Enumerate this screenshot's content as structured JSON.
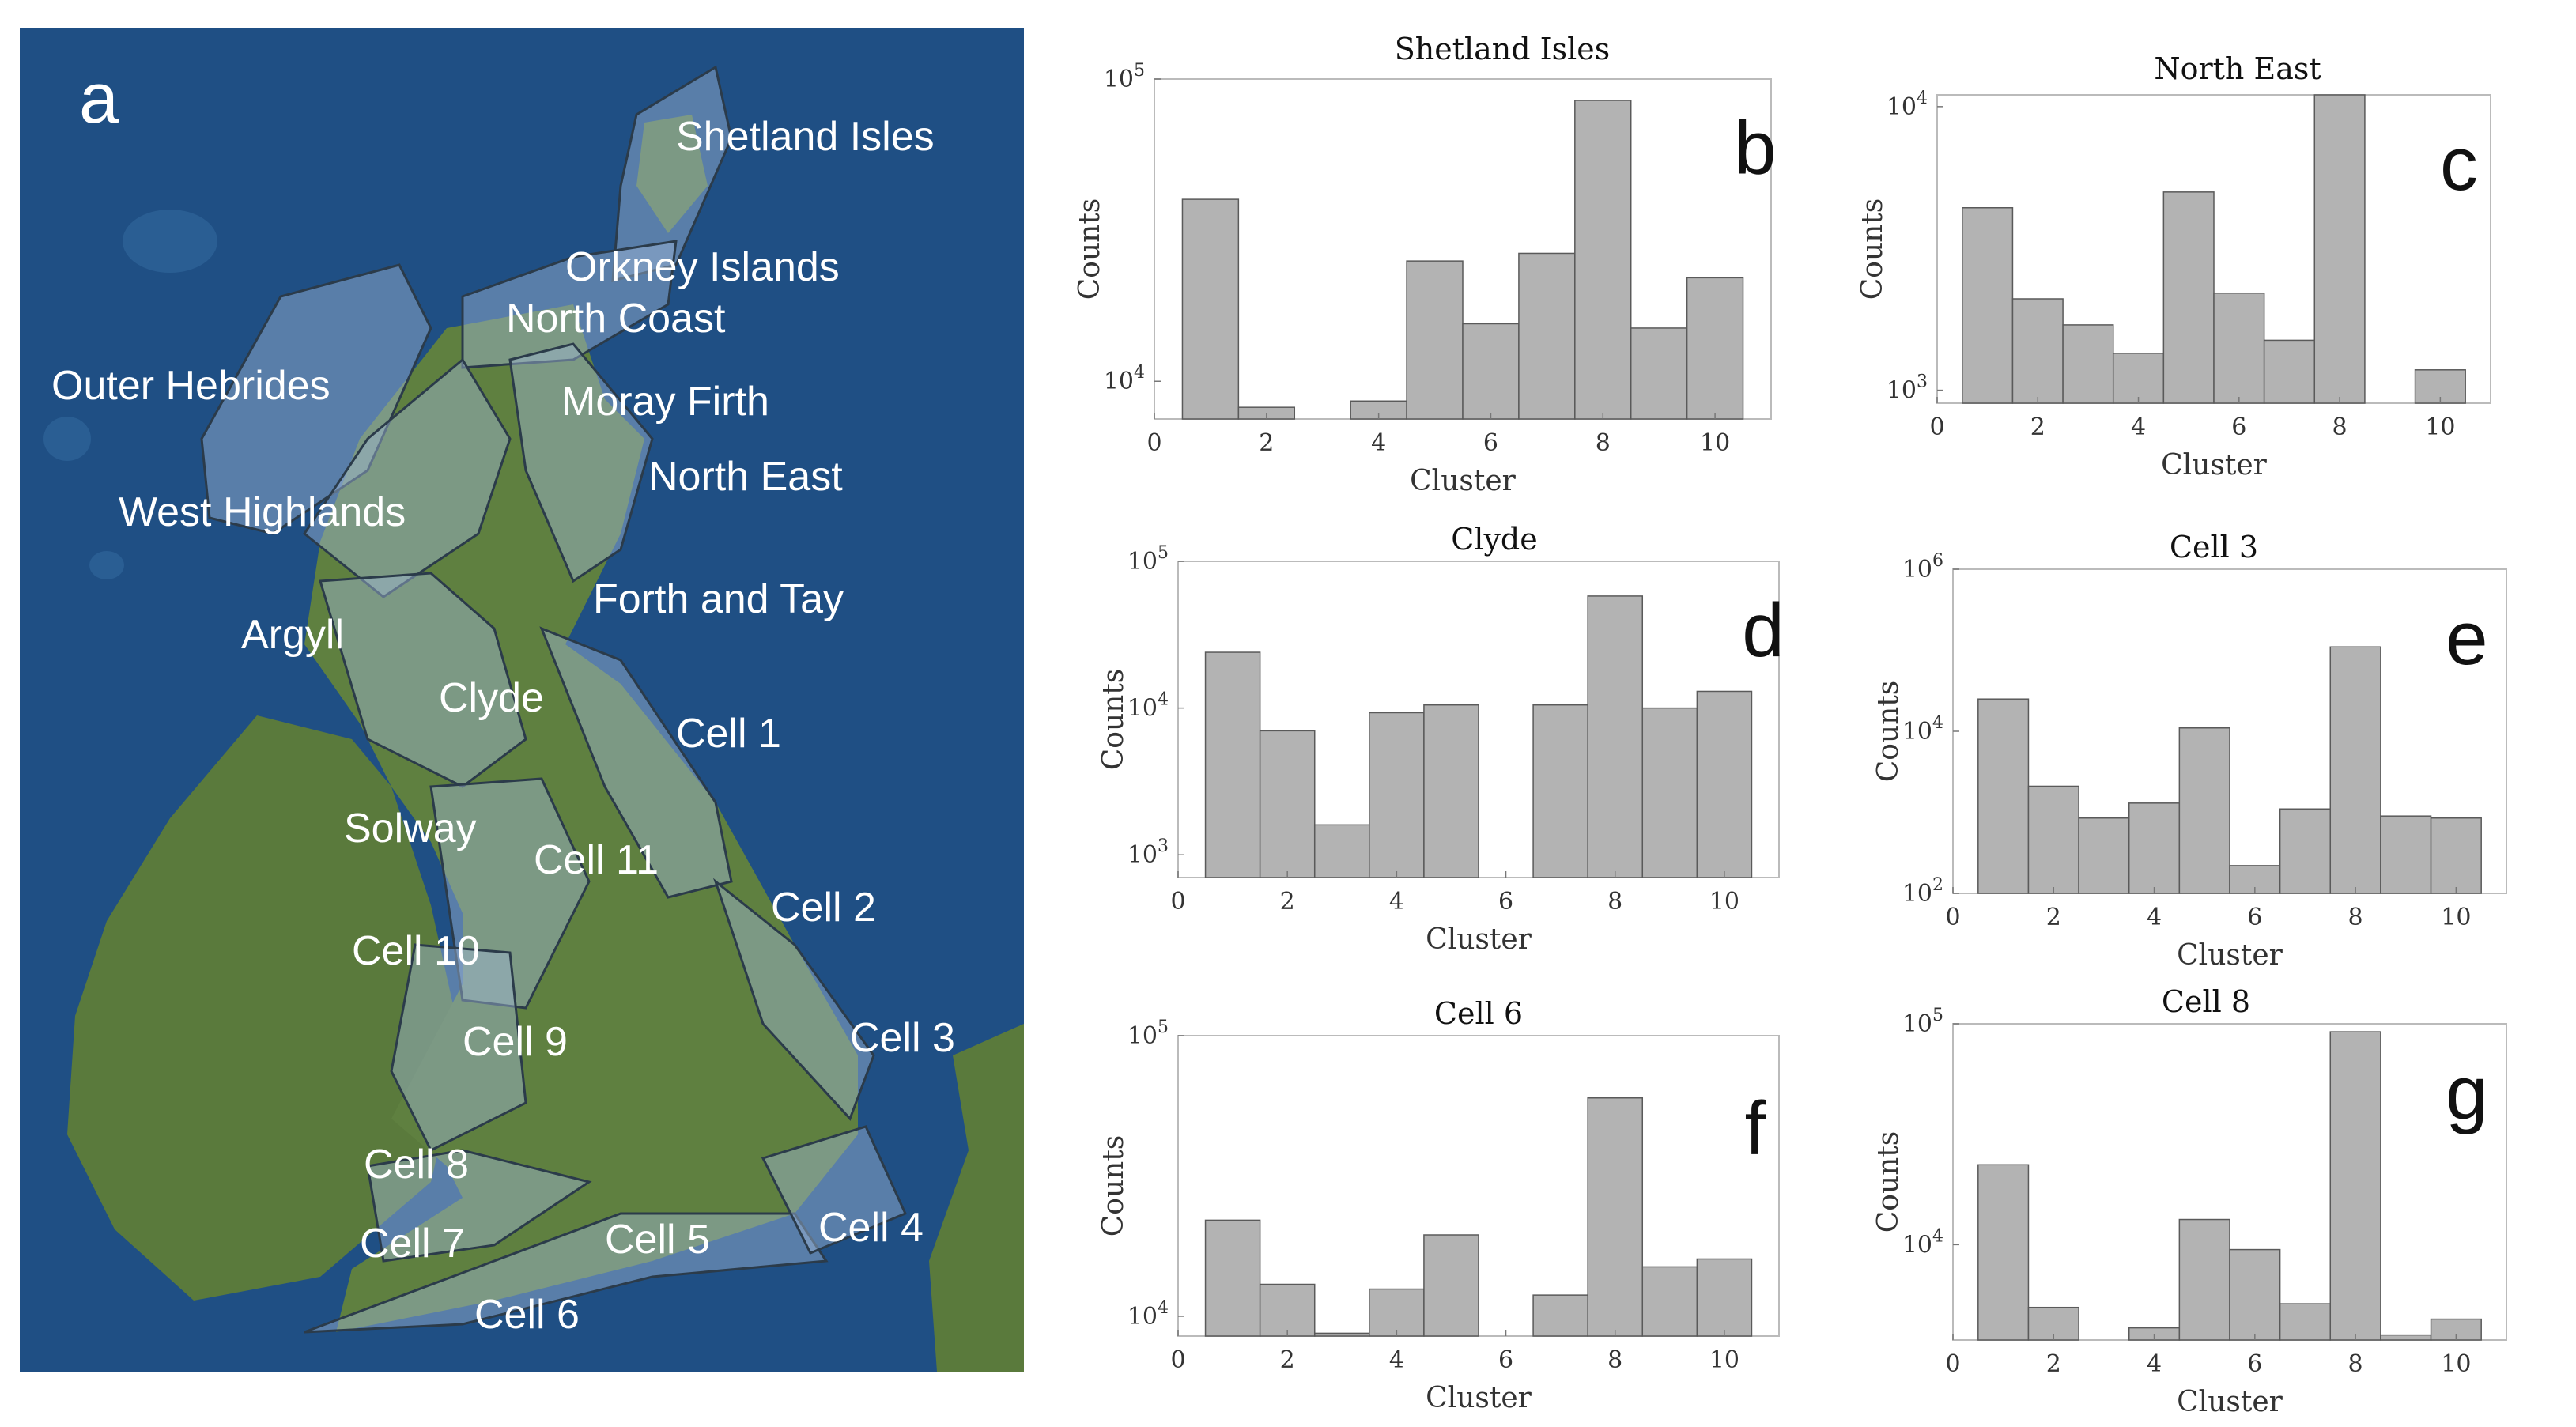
{
  "map": {
    "panel_letter": "a",
    "labels": [
      "Shetland Isles",
      "Orkney Islands",
      "North Coast",
      "Outer Hebrides",
      "Moray Firth",
      "North East",
      "West Highlands",
      "Forth and Tay",
      "Argyll",
      "Clyde",
      "Cell 1",
      "Solway",
      "Cell 11",
      "Cell 2",
      "Cell 10",
      "Cell 9",
      "Cell 3",
      "Cell 8",
      "Cell 7",
      "Cell 5",
      "Cell 4",
      "Cell 6"
    ],
    "colors": {
      "sea": "#1f4f84",
      "land": "#5a7a3c",
      "overlay": "#9fb8d8"
    }
  },
  "chart_data": [
    {
      "id": "b",
      "type": "bar",
      "title": "Shetland Isles",
      "xlabel": "Cluster",
      "ylabel": "Counts",
      "yscale": "log",
      "xlim": [
        0,
        11
      ],
      "xticks": [
        0,
        2,
        4,
        6,
        8,
        10
      ],
      "ylim": [
        7500,
        100000
      ],
      "yticks": [
        {
          "value": 10000,
          "base": "10",
          "exp": "4"
        },
        {
          "value": 100000,
          "base": "10",
          "exp": "5"
        }
      ],
      "categories": [
        1,
        2,
        3,
        4,
        5,
        6,
        7,
        8,
        9,
        10
      ],
      "values": [
        40000,
        8200,
        null,
        8600,
        25000,
        15500,
        26500,
        85000,
        15000,
        22000
      ]
    },
    {
      "id": "c",
      "type": "bar",
      "title": "North East",
      "xlabel": "Cluster",
      "ylabel": "Counts",
      "yscale": "log",
      "xlim": [
        0,
        11
      ],
      "xticks": [
        0,
        2,
        4,
        6,
        8,
        10
      ],
      "ylim": [
        900,
        11000
      ],
      "yticks": [
        {
          "value": 1000,
          "base": "10",
          "exp": "3"
        },
        {
          "value": 10000,
          "base": "10",
          "exp": "4"
        }
      ],
      "categories": [
        1,
        2,
        3,
        4,
        5,
        6,
        7,
        8,
        9,
        10
      ],
      "values": [
        4400,
        2100,
        1700,
        1350,
        5000,
        2200,
        1500,
        11000,
        null,
        1180
      ]
    },
    {
      "id": "d",
      "type": "bar",
      "title": "Clyde",
      "xlabel": "Cluster",
      "ylabel": "Counts",
      "yscale": "log",
      "xlim": [
        0,
        11
      ],
      "xticks": [
        0,
        2,
        4,
        6,
        8,
        10
      ],
      "ylim": [
        700,
        100000
      ],
      "yticks": [
        {
          "value": 1000,
          "base": "10",
          "exp": "3"
        },
        {
          "value": 10000,
          "base": "10",
          "exp": "4"
        },
        {
          "value": 100000,
          "base": "10",
          "exp": "5"
        }
      ],
      "categories": [
        1,
        2,
        3,
        4,
        5,
        6,
        7,
        8,
        9,
        10
      ],
      "values": [
        24000,
        7000,
        1600,
        9300,
        10500,
        null,
        10500,
        58000,
        10000,
        13000
      ]
    },
    {
      "id": "e",
      "type": "bar",
      "title": "Cell 3",
      "xlabel": "Cluster",
      "ylabel": "Counts",
      "yscale": "log",
      "xlim": [
        0,
        11
      ],
      "xticks": [
        0,
        2,
        4,
        6,
        8,
        10
      ],
      "ylim": [
        100,
        1000000
      ],
      "yticks": [
        {
          "value": 100,
          "base": "10",
          "exp": "2"
        },
        {
          "value": 10000,
          "base": "10",
          "exp": "4"
        },
        {
          "value": 1000000,
          "base": "10",
          "exp": "6"
        }
      ],
      "categories": [
        1,
        2,
        3,
        4,
        5,
        6,
        7,
        8,
        9,
        10
      ],
      "values": [
        25000,
        2100,
        850,
        1300,
        11000,
        220,
        1100,
        110000,
        900,
        850
      ]
    },
    {
      "id": "f",
      "type": "bar",
      "title": "Cell 6",
      "xlabel": "Cluster",
      "ylabel": "Counts",
      "yscale": "log",
      "xlim": [
        0,
        11
      ],
      "xticks": [
        0,
        2,
        4,
        6,
        8,
        10
      ],
      "ylim": [
        8500,
        100000
      ],
      "yticks": [
        {
          "value": 10000,
          "base": "10",
          "exp": "4"
        },
        {
          "value": 100000,
          "base": "10",
          "exp": "5"
        }
      ],
      "categories": [
        1,
        2,
        3,
        4,
        5,
        6,
        7,
        8,
        9,
        10
      ],
      "values": [
        22000,
        13000,
        8700,
        12500,
        19500,
        null,
        11900,
        60000,
        15000,
        16000
      ]
    },
    {
      "id": "g",
      "type": "bar",
      "title": "Cell 8",
      "xlabel": "Cluster",
      "ylabel": "Counts",
      "yscale": "log",
      "xlim": [
        0,
        11
      ],
      "xticks": [
        0,
        2,
        4,
        6,
        8,
        10
      ],
      "ylim": [
        3700,
        100000
      ],
      "yticks": [
        {
          "value": 10000,
          "base": "10",
          "exp": "4"
        },
        {
          "value": 100000,
          "base": "10",
          "exp": "5"
        }
      ],
      "categories": [
        1,
        2,
        3,
        4,
        5,
        6,
        7,
        8,
        9,
        10
      ],
      "values": [
        23000,
        5200,
        null,
        4200,
        13000,
        9500,
        5400,
        92000,
        3900,
        4600
      ]
    }
  ]
}
